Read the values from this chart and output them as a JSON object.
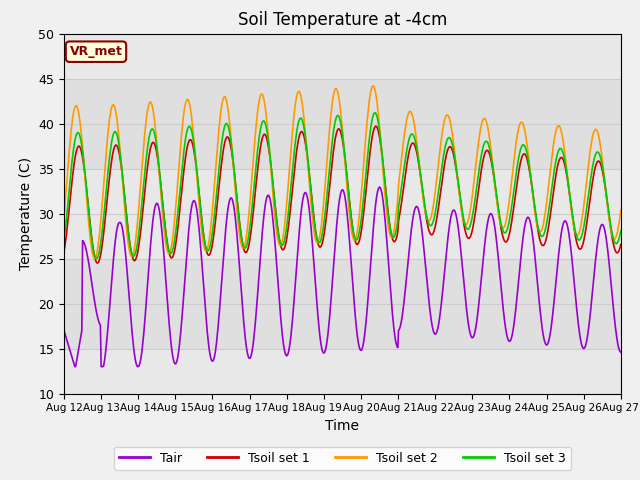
{
  "title": "Soil Temperature at -4cm",
  "xlabel": "Time",
  "ylabel": "Temperature (C)",
  "ylim": [
    10,
    50
  ],
  "xtick_labels": [
    "Aug 12",
    "Aug 13",
    "Aug 14",
    "Aug 15",
    "Aug 16",
    "Aug 17",
    "Aug 18",
    "Aug 19",
    "Aug 20",
    "Aug 21",
    "Aug 22",
    "Aug 23",
    "Aug 24",
    "Aug 25",
    "Aug 26",
    "Aug 27"
  ],
  "colors": {
    "Tair": "#9900cc",
    "Tsoil1": "#cc0000",
    "Tsoil2": "#ff9900",
    "Tsoil3": "#00cc00"
  },
  "legend_labels": [
    "Tair",
    "Tsoil set 1",
    "Tsoil set 2",
    "Tsoil set 3"
  ],
  "annotation_text": "VR_met",
  "annotation_color": "#8B0000",
  "annotation_bg": "#ffffdd",
  "bg_color": "#e8e8e8",
  "grid_color": "#cccccc",
  "linewidth": 1.2,
  "figsize": [
    6.4,
    4.8
  ],
  "dpi": 100
}
